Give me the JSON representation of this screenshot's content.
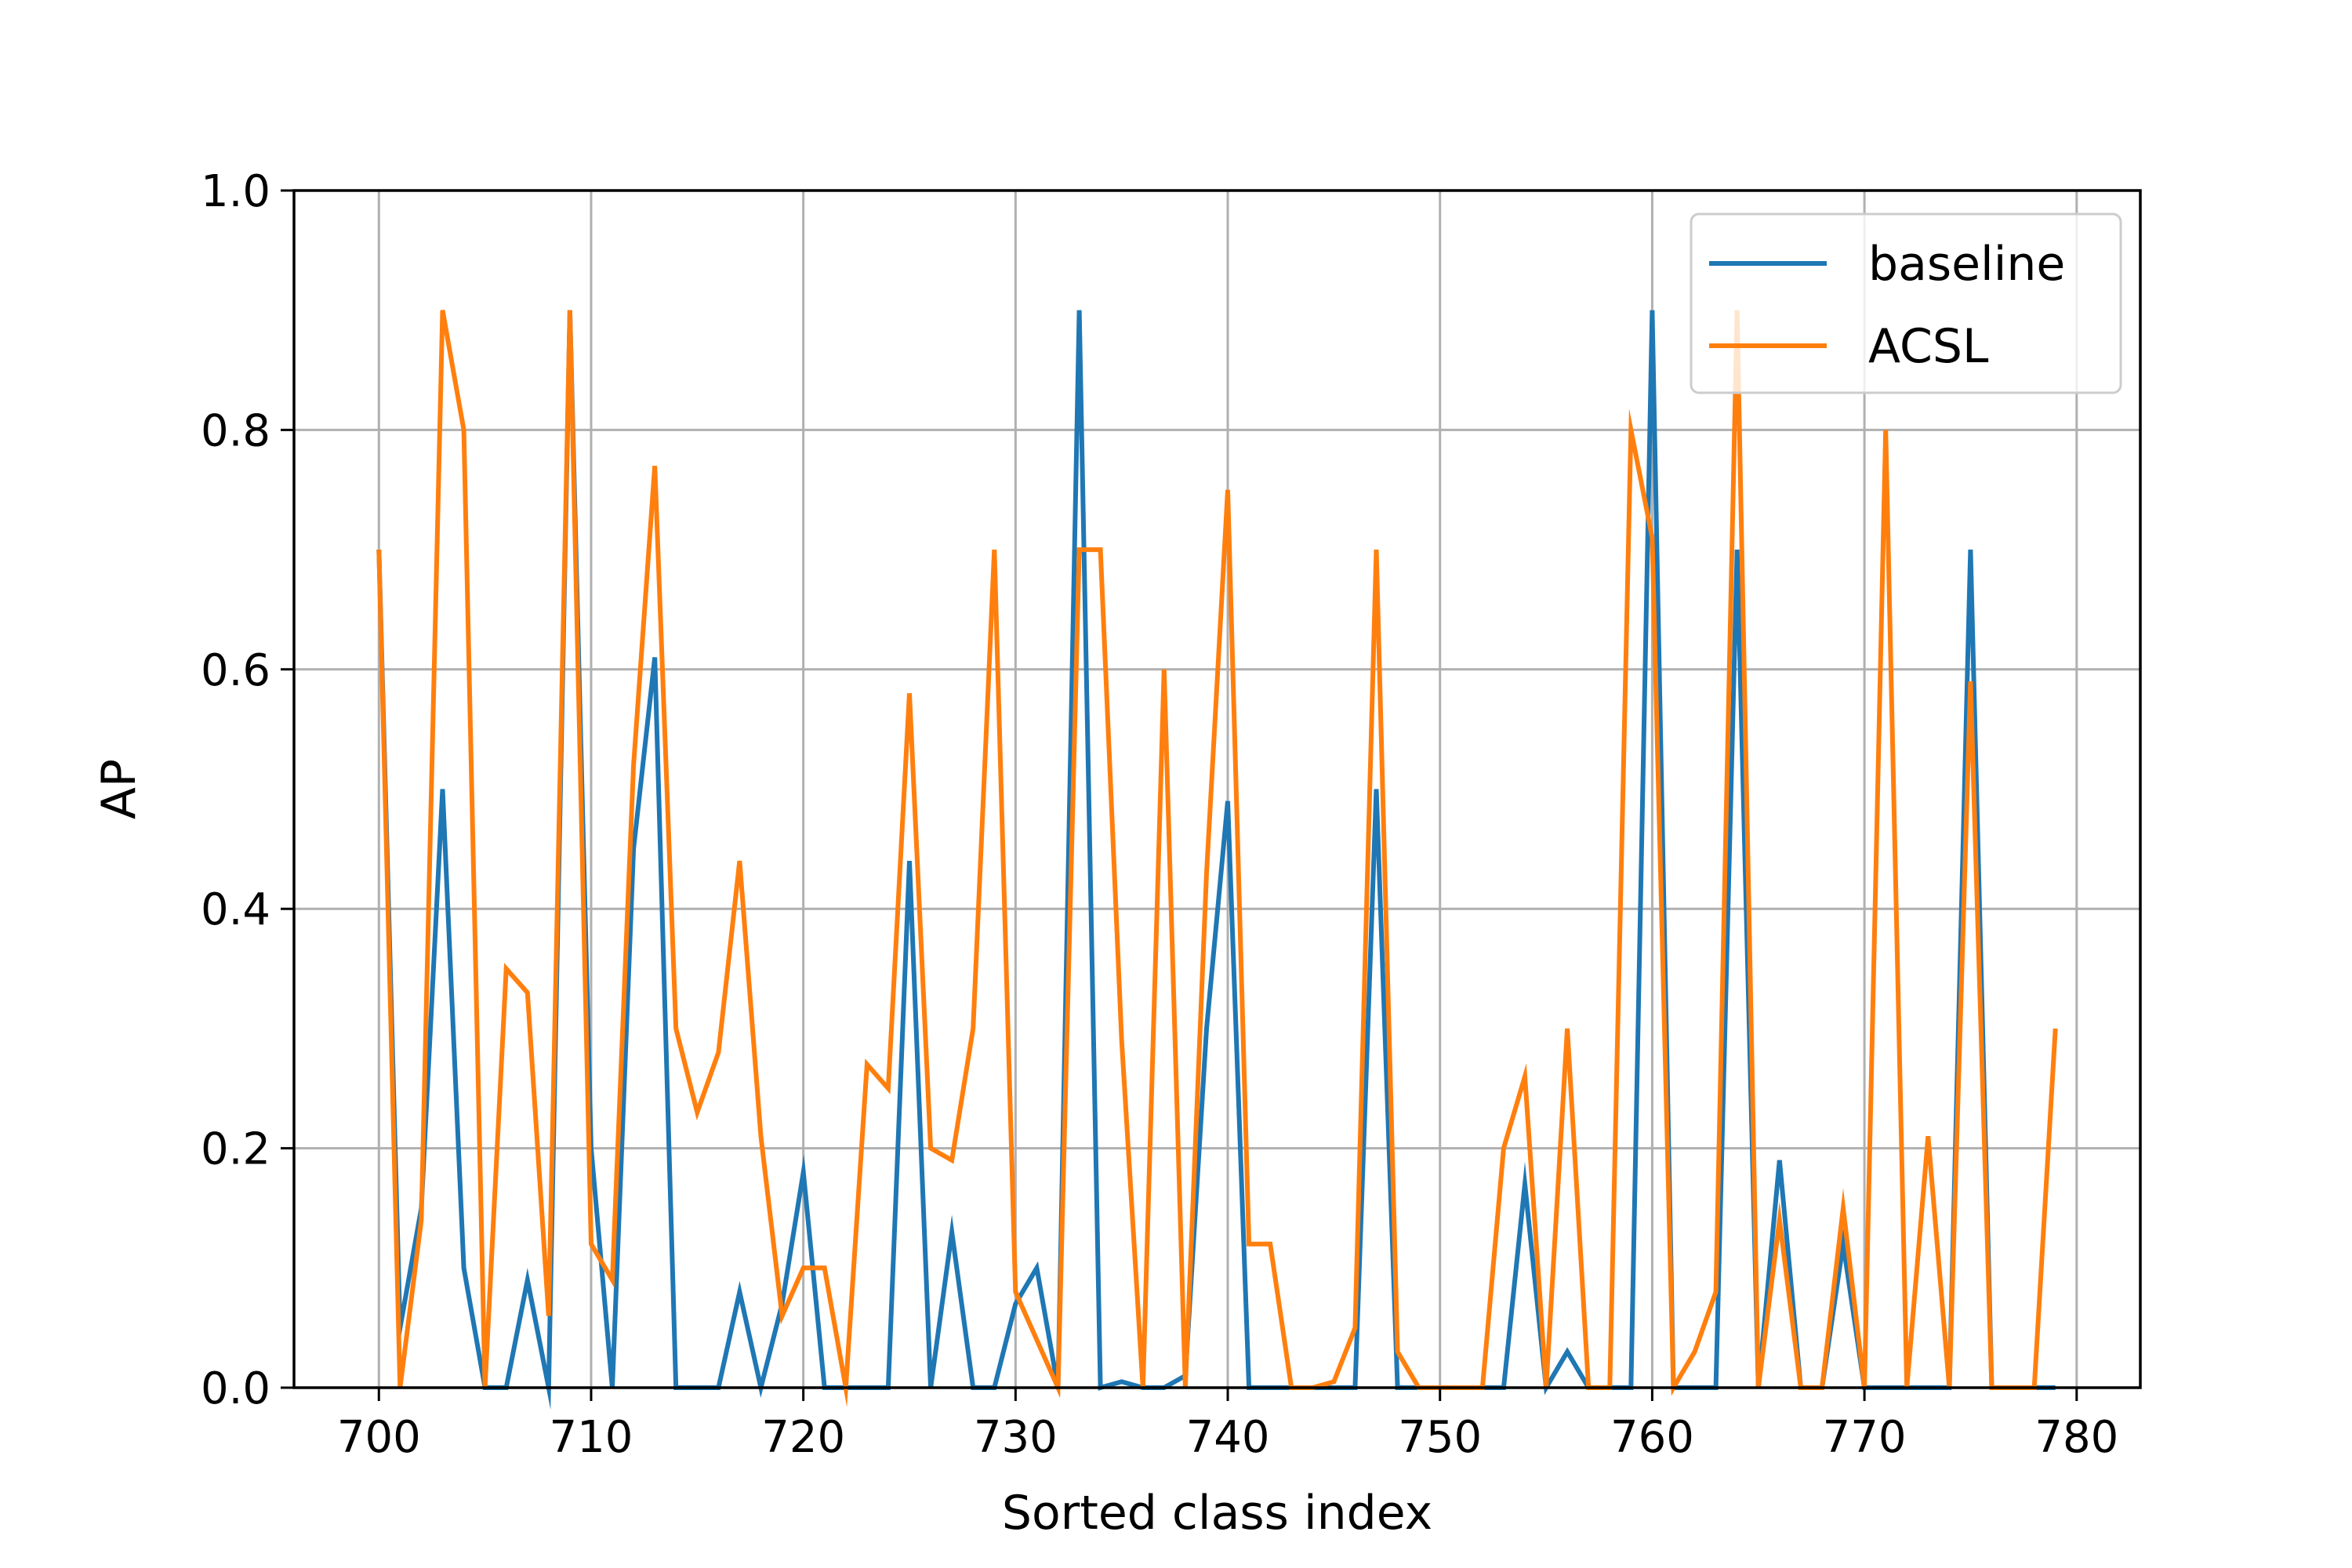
{
  "chart_data": {
    "type": "line",
    "title": "",
    "xlabel": "Sorted class index",
    "ylabel": "AP",
    "xlim": [
      696,
      783
    ],
    "ylim": [
      0,
      1.0
    ],
    "xticks": [
      700,
      710,
      720,
      730,
      740,
      750,
      760,
      770,
      780
    ],
    "yticks": [
      0.0,
      0.2,
      0.4,
      0.6,
      0.8,
      1.0
    ],
    "xtick_labels": [
      "700",
      "710",
      "720",
      "730",
      "740",
      "750",
      "760",
      "770",
      "780"
    ],
    "ytick_labels": [
      "0.0",
      "0.2",
      "0.4",
      "0.6",
      "0.8",
      "1.0"
    ],
    "grid": true,
    "legend_position": "top-right",
    "x": [
      700,
      701,
      702,
      703,
      704,
      705,
      706,
      707,
      708,
      709,
      710,
      711,
      712,
      713,
      714,
      715,
      716,
      717,
      718,
      719,
      720,
      721,
      722,
      723,
      724,
      725,
      726,
      727,
      728,
      729,
      730,
      731,
      732,
      733,
      734,
      735,
      736,
      737,
      738,
      739,
      740,
      741,
      742,
      743,
      744,
      745,
      746,
      747,
      748,
      749,
      750,
      751,
      752,
      753,
      754,
      755,
      756,
      757,
      758,
      759,
      760,
      761,
      762,
      763,
      764,
      765,
      766,
      767,
      768,
      769,
      770,
      771,
      772,
      773,
      774,
      775,
      776,
      777,
      778,
      779
    ],
    "series": [
      {
        "name": "baseline",
        "color": "#1f77b4",
        "values": [
          0.7,
          0.05,
          0.15,
          0.5,
          0.1,
          0.0,
          0.0,
          0.09,
          0.0,
          0.9,
          0.2,
          0.0,
          0.45,
          0.61,
          0.0,
          0.0,
          0.0,
          0.08,
          0.0,
          0.07,
          0.18,
          0.0,
          0.0,
          0.0,
          0.0,
          0.44,
          0.0,
          0.13,
          0.0,
          0.0,
          0.07,
          0.1,
          0.0,
          0.9,
          0.0,
          0.005,
          0.0,
          0.0,
          0.01,
          0.3,
          0.49,
          0.0,
          0.0,
          0.0,
          0.0,
          0.0,
          0.0,
          0.5,
          0.0,
          0.0,
          0.0,
          0.0,
          0.0,
          0.0,
          0.17,
          0.0,
          0.03,
          0.0,
          0.0,
          0.0,
          0.9,
          0.0,
          0.0,
          0.0,
          0.7,
          0.0,
          0.19,
          0.0,
          0.0,
          0.12,
          0.0,
          0.0,
          0.0,
          0.0,
          0.0,
          0.7,
          0.0,
          0.0,
          0.0,
          0.0
        ]
      },
      {
        "name": "ACSL",
        "color": "#ff7f0e",
        "values": [
          0.7,
          0.0,
          0.14,
          0.9,
          0.8,
          0.0,
          0.35,
          0.33,
          0.06,
          0.9,
          0.12,
          0.09,
          0.52,
          0.77,
          0.3,
          0.23,
          0.28,
          0.44,
          0.21,
          0.06,
          0.1,
          0.1,
          0.0,
          0.27,
          0.25,
          0.58,
          0.2,
          0.19,
          0.3,
          0.7,
          0.08,
          0.04,
          0.0,
          0.7,
          0.7,
          0.29,
          0.0,
          0.6,
          0.0,
          0.43,
          0.75,
          0.12,
          0.12,
          0.0,
          0.0,
          0.005,
          0.05,
          0.7,
          0.03,
          0.0,
          0.0,
          0.0,
          0.0,
          0.2,
          0.26,
          0.0,
          0.3,
          0.0,
          0.0,
          0.8,
          0.71,
          0.0,
          0.03,
          0.08,
          0.9,
          0.0,
          0.14,
          0.0,
          0.0,
          0.15,
          0.0,
          0.8,
          0.0,
          0.21,
          0.0,
          0.59,
          0.0,
          0.0,
          0.0,
          0.3
        ]
      }
    ]
  }
}
